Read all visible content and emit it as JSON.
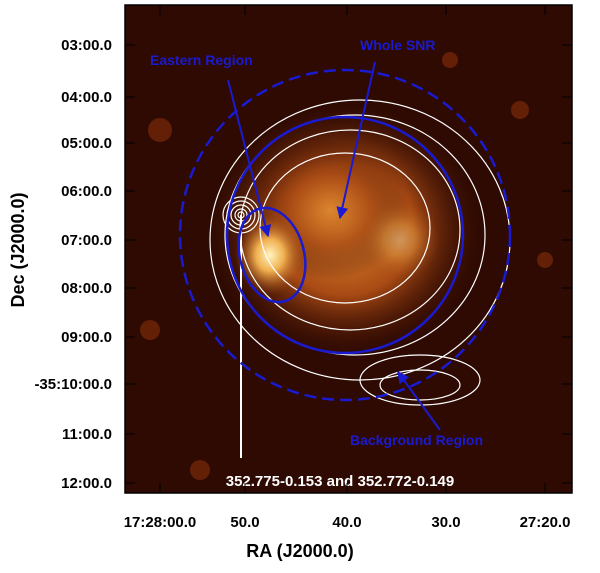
{
  "figure": {
    "x_label": "RA (J2000.0)",
    "y_label": "Dec (J2000.0)",
    "x_ticks": [
      "17:28:00.0",
      "50.0",
      "40.0",
      "30.0",
      "27:20.0"
    ],
    "y_ticks": [
      "03:00.0",
      "04:00.0",
      "05:00.0",
      "06:00.0",
      "07:00.0",
      "08:00.0",
      "09:00.0",
      "-35:10:00.0",
      "11:00.0",
      "12:00.0"
    ],
    "annotations": {
      "eastern_region": "Eastern Region",
      "whole_snr": "Whole SNR",
      "background_region": "Background Region",
      "sources": "352.775-0.153 and 352.772-0.149"
    }
  }
}
